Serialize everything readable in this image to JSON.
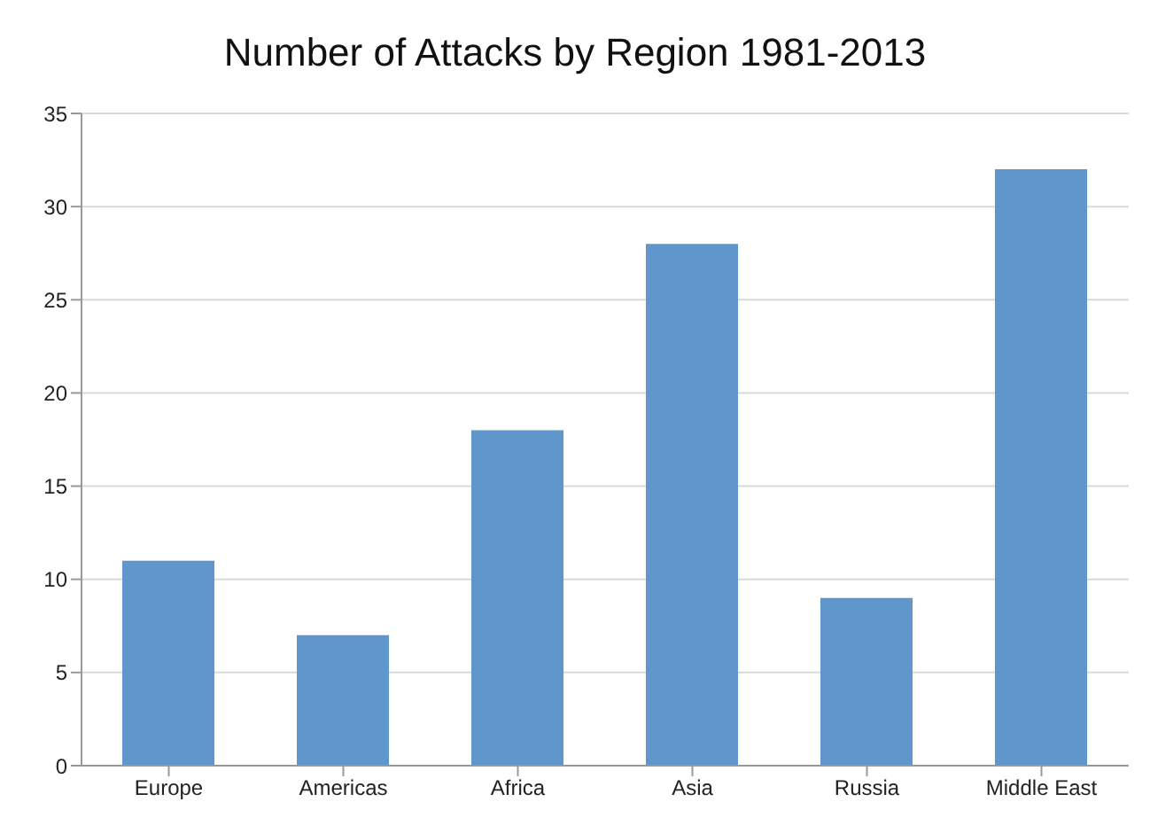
{
  "chart_data": {
    "type": "bar",
    "title": "Number of Attacks by Region 1981-2013",
    "categories": [
      "Europe",
      "Americas",
      "Africa",
      "Asia",
      "Russia",
      "Middle East"
    ],
    "values": [
      11,
      7,
      18,
      28,
      9,
      32
    ],
    "color": "#5f96cc",
    "ylim": [
      0,
      35
    ],
    "yticks": [
      0,
      5,
      10,
      15,
      20,
      25,
      30,
      35
    ],
    "grid": "y"
  }
}
